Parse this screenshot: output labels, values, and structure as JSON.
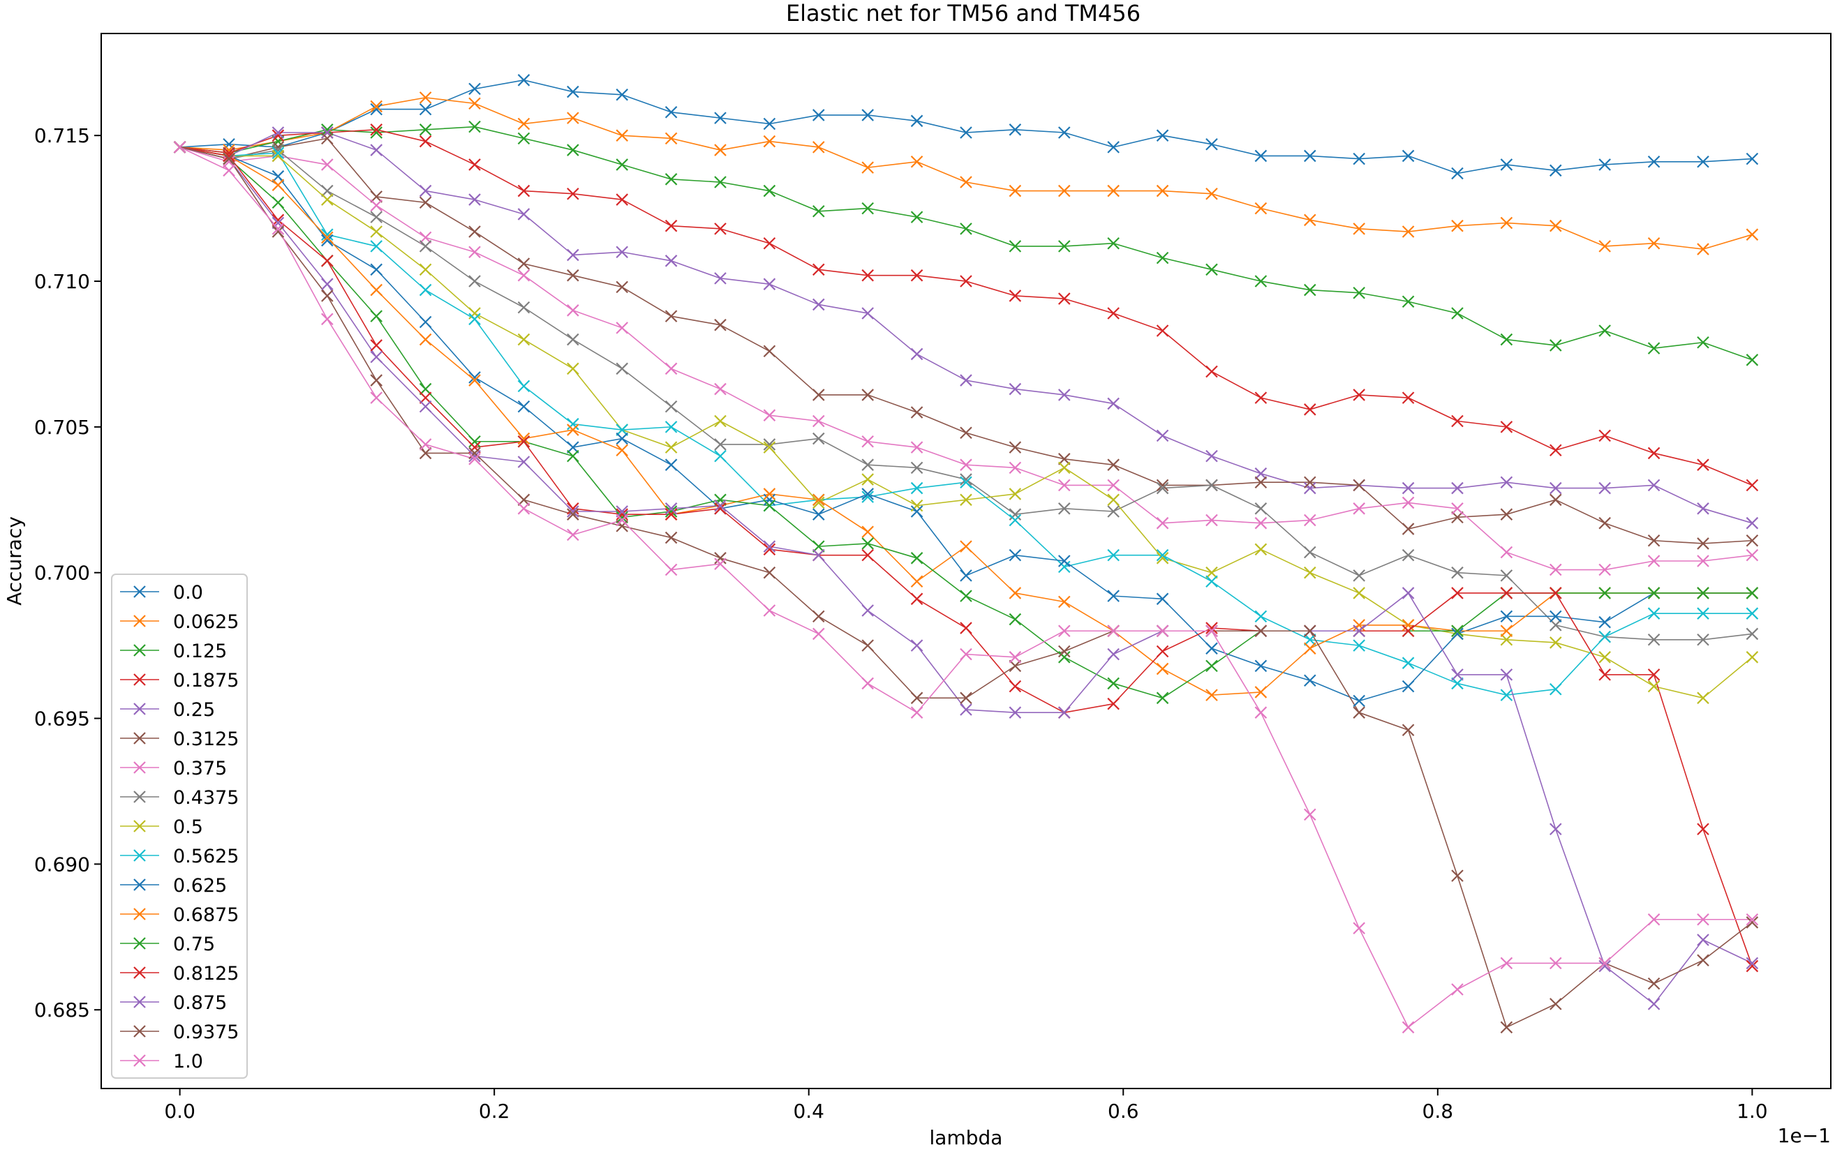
{
  "chart_data": {
    "type": "line",
    "title": "Elastic net for TM56 and TM456",
    "xlabel": "lambda",
    "ylabel": "Accuracy",
    "x_offset_label": "1e−1",
    "xlim": [
      -0.05,
      1.05
    ],
    "ylim": [
      0.6823,
      0.7185
    ],
    "x_ticks": [
      0.0,
      0.2,
      0.4,
      0.6,
      0.8,
      1.0
    ],
    "x_tick_labels": [
      "0.0",
      "0.2",
      "0.4",
      "0.6",
      "0.8",
      "1.0"
    ],
    "y_ticks": [
      0.685,
      0.69,
      0.695,
      0.7,
      0.705,
      0.71,
      0.715
    ],
    "y_tick_labels": [
      "0.685",
      "0.690",
      "0.695",
      "0.700",
      "0.705",
      "0.710",
      "0.715"
    ],
    "grid": false,
    "legend_position": "lower-left",
    "marker": "x",
    "x": [
      0.0,
      0.03125,
      0.0625,
      0.09375,
      0.125,
      0.15625,
      0.1875,
      0.21875,
      0.25,
      0.28125,
      0.3125,
      0.34375,
      0.375,
      0.40625,
      0.4375,
      0.46875,
      0.5,
      0.53125,
      0.5625,
      0.59375,
      0.625,
      0.65625,
      0.6875,
      0.71875,
      0.75,
      0.78125,
      0.8125,
      0.84375,
      0.875,
      0.90625,
      0.9375,
      0.96875,
      1.0
    ],
    "series": [
      {
        "name": "0.0",
        "color": "#1f77b4",
        "values": [
          0.7146,
          0.7147,
          0.7146,
          0.7151,
          0.7159,
          0.7159,
          0.7166,
          0.7169,
          0.7165,
          0.7164,
          0.7158,
          0.7156,
          0.7154,
          0.7157,
          0.7157,
          0.7155,
          0.7151,
          0.7152,
          0.7151,
          0.7146,
          0.715,
          0.7147,
          0.7143,
          0.7143,
          0.7142,
          0.7143,
          0.7137,
          0.714,
          0.7138,
          0.714,
          0.7141,
          0.7141,
          0.7142
        ]
      },
      {
        "name": "0.0625",
        "color": "#ff7f0e",
        "values": [
          0.7146,
          0.7145,
          0.7148,
          0.7151,
          0.716,
          0.7163,
          0.7161,
          0.7154,
          0.7156,
          0.715,
          0.7149,
          0.7145,
          0.7148,
          0.7146,
          0.7139,
          0.7141,
          0.7134,
          0.7131,
          0.7131,
          0.7131,
          0.7131,
          0.713,
          0.7125,
          0.7121,
          0.7118,
          0.7117,
          0.7119,
          0.712,
          0.7119,
          0.7112,
          0.7113,
          0.7111,
          0.7116
        ]
      },
      {
        "name": "0.125",
        "color": "#2ca02c",
        "values": [
          0.7146,
          0.7144,
          0.7148,
          0.7152,
          0.7151,
          0.7152,
          0.7153,
          0.7149,
          0.7145,
          0.714,
          0.7135,
          0.7134,
          0.7131,
          0.7124,
          0.7125,
          0.7122,
          0.7118,
          0.7112,
          0.7112,
          0.7113,
          0.7108,
          0.7104,
          0.71,
          0.7097,
          0.7096,
          0.7093,
          0.7089,
          0.708,
          0.7078,
          0.7083,
          0.7077,
          0.7079,
          0.7073
        ]
      },
      {
        "name": "0.1875",
        "color": "#d62728",
        "values": [
          0.7146,
          0.7144,
          0.715,
          0.7151,
          0.7152,
          0.7148,
          0.714,
          0.7131,
          0.713,
          0.7128,
          0.7119,
          0.7118,
          0.7113,
          0.7104,
          0.7102,
          0.7102,
          0.71,
          0.7095,
          0.7094,
          0.7089,
          0.7083,
          0.7069,
          0.706,
          0.7056,
          0.7061,
          0.706,
          0.7052,
          0.705,
          0.7042,
          0.7047,
          0.7041,
          0.7037,
          0.703
        ]
      },
      {
        "name": "0.25",
        "color": "#9467bd",
        "values": [
          0.7146,
          0.7143,
          0.7151,
          0.7151,
          0.7145,
          0.7131,
          0.7128,
          0.7123,
          0.7109,
          0.711,
          0.7107,
          0.7101,
          0.7099,
          0.7092,
          0.7089,
          0.7075,
          0.7066,
          0.7063,
          0.7061,
          0.7058,
          0.7047,
          0.704,
          0.7034,
          0.7029,
          0.703,
          0.7029,
          0.7029,
          0.7031,
          0.7029,
          0.7029,
          0.703,
          0.7022,
          0.7017
        ]
      },
      {
        "name": "0.3125",
        "color": "#8c564b",
        "values": [
          0.7146,
          0.7142,
          0.7146,
          0.7149,
          0.7129,
          0.7127,
          0.7117,
          0.7106,
          0.7102,
          0.7098,
          0.7088,
          0.7085,
          0.7076,
          0.7061,
          0.7061,
          0.7055,
          0.7048,
          0.7043,
          0.7039,
          0.7037,
          0.703,
          0.703,
          0.7031,
          0.7031,
          0.703,
          0.7015,
          0.7019,
          0.702,
          0.7025,
          0.7017,
          0.7011,
          0.701,
          0.7011
        ]
      },
      {
        "name": "0.375",
        "color": "#e377c2",
        "values": [
          0.7146,
          0.7141,
          0.7143,
          0.714,
          0.7126,
          0.7115,
          0.711,
          0.7102,
          0.709,
          0.7084,
          0.707,
          0.7063,
          0.7054,
          0.7052,
          0.7045,
          0.7043,
          0.7037,
          0.7036,
          0.703,
          0.703,
          0.7017,
          0.7018,
          0.7017,
          0.7018,
          0.7022,
          0.7024,
          0.7022,
          0.7007,
          0.7001,
          0.7001,
          0.7004,
          0.7004,
          0.7006
        ]
      },
      {
        "name": "0.4375",
        "color": "#7f7f7f",
        "values": [
          0.7146,
          0.7142,
          0.7145,
          0.7131,
          0.7122,
          0.7112,
          0.71,
          0.7091,
          0.708,
          0.707,
          0.7057,
          0.7044,
          0.7044,
          0.7046,
          0.7037,
          0.7036,
          0.7032,
          0.702,
          0.7022,
          0.7021,
          0.7029,
          0.703,
          0.7022,
          0.7007,
          0.6999,
          0.7006,
          0.7,
          0.6999,
          0.6982,
          0.6978,
          0.6977,
          0.6977,
          0.6979
        ]
      },
      {
        "name": "0.5",
        "color": "#bcbd22",
        "values": [
          0.7146,
          0.7143,
          0.7143,
          0.7128,
          0.7117,
          0.7104,
          0.7089,
          0.708,
          0.707,
          0.7049,
          0.7043,
          0.7052,
          0.7043,
          0.7024,
          0.7032,
          0.7023,
          0.7025,
          0.7027,
          0.7036,
          0.7025,
          0.7005,
          0.7,
          0.7008,
          0.7,
          0.6993,
          0.6982,
          0.6979,
          0.6977,
          0.6976,
          0.6971,
          0.6961,
          0.6957,
          0.6971
        ]
      },
      {
        "name": "0.5625",
        "color": "#17becf",
        "values": [
          0.7146,
          0.7143,
          0.7144,
          0.7116,
          0.7112,
          0.7097,
          0.7087,
          0.7064,
          0.7051,
          0.7049,
          0.705,
          0.704,
          0.7023,
          0.7025,
          0.7026,
          0.7029,
          0.7031,
          0.7018,
          0.7002,
          0.7006,
          0.7006,
          0.6997,
          0.6985,
          0.6977,
          0.6975,
          0.6969,
          0.6962,
          0.6958,
          0.696,
          0.6978,
          0.6986,
          0.6986,
          0.6986
        ]
      },
      {
        "name": "0.625",
        "color": "#1f77b4",
        "values": [
          0.7146,
          0.7143,
          0.7136,
          0.7114,
          0.7104,
          0.7086,
          0.7067,
          0.7057,
          0.7043,
          0.7046,
          0.7037,
          0.7022,
          0.7025,
          0.702,
          0.7027,
          0.7021,
          0.6999,
          0.7006,
          0.7004,
          0.6992,
          0.6991,
          0.6974,
          0.6968,
          0.6963,
          0.6956,
          0.6961,
          0.6979,
          0.6985,
          0.6985,
          0.6983,
          0.6993,
          0.6993,
          0.6993
        ]
      },
      {
        "name": "0.6875",
        "color": "#ff7f0e",
        "values": [
          0.7146,
          0.7143,
          0.7133,
          0.7115,
          0.7097,
          0.708,
          0.7066,
          0.7046,
          0.7049,
          0.7042,
          0.702,
          0.7023,
          0.7027,
          0.7025,
          0.7014,
          0.6997,
          0.7009,
          0.6993,
          0.699,
          0.698,
          0.6967,
          0.6958,
          0.6959,
          0.6974,
          0.6982,
          0.6982,
          0.698,
          0.698,
          0.6993,
          0.6993,
          0.6993,
          0.6993,
          0.6993
        ]
      },
      {
        "name": "0.75",
        "color": "#2ca02c",
        "values": [
          0.7146,
          0.7142,
          0.7127,
          0.7107,
          0.7088,
          0.7063,
          0.7045,
          0.7045,
          0.704,
          0.7019,
          0.7021,
          0.7025,
          0.7023,
          0.7009,
          0.701,
          0.7005,
          0.6992,
          0.6984,
          0.6971,
          0.6962,
          0.6957,
          0.6968,
          0.698,
          0.698,
          0.698,
          0.698,
          0.698,
          0.6993,
          0.6993,
          0.6993,
          0.6993,
          0.6993,
          0.6993
        ]
      },
      {
        "name": "0.8125",
        "color": "#d62728",
        "values": [
          0.7146,
          0.7143,
          0.7121,
          0.7107,
          0.7078,
          0.706,
          0.7043,
          0.7045,
          0.7022,
          0.702,
          0.702,
          0.7022,
          0.7008,
          0.7006,
          0.7006,
          0.6991,
          0.6981,
          0.6961,
          0.6952,
          0.6955,
          0.6973,
          0.6981,
          0.698,
          0.698,
          0.698,
          0.698,
          0.6993,
          0.6993,
          0.6993,
          0.6965,
          0.6965,
          0.6912,
          0.6865
        ]
      },
      {
        "name": "0.875",
        "color": "#9467bd",
        "values": [
          0.7146,
          0.7142,
          0.712,
          0.7099,
          0.7074,
          0.7057,
          0.704,
          0.7038,
          0.7021,
          0.7021,
          0.7022,
          0.7023,
          0.7009,
          0.7006,
          0.6987,
          0.6975,
          0.6953,
          0.6952,
          0.6952,
          0.6972,
          0.698,
          0.698,
          0.698,
          0.698,
          0.698,
          0.6993,
          0.6965,
          0.6965,
          0.6912,
          0.6865,
          0.6852,
          0.6874,
          0.6866
        ]
      },
      {
        "name": "0.9375",
        "color": "#8c564b",
        "values": [
          0.7146,
          0.7142,
          0.7117,
          0.7095,
          0.7066,
          0.7041,
          0.7041,
          0.7025,
          0.702,
          0.7016,
          0.7012,
          0.7005,
          0.7,
          0.6985,
          0.6975,
          0.6957,
          0.6957,
          0.6968,
          0.6973,
          0.698,
          0.698,
          0.698,
          0.698,
          0.698,
          0.6952,
          0.6946,
          0.6896,
          0.6844,
          0.6852,
          0.6866,
          0.6859,
          0.6867,
          0.688
        ]
      },
      {
        "name": "1.0",
        "color": "#e377c2",
        "values": [
          0.7146,
          0.7138,
          0.7118,
          0.7087,
          0.706,
          0.7044,
          0.7039,
          0.7022,
          0.7013,
          0.7018,
          0.7001,
          0.7003,
          0.6987,
          0.6979,
          0.6962,
          0.6952,
          0.6972,
          0.6971,
          0.698,
          0.698,
          0.698,
          0.698,
          0.6952,
          0.6917,
          0.6878,
          0.6844,
          0.6857,
          0.6866,
          0.6866,
          0.6866,
          0.6881,
          0.6881,
          0.6881
        ]
      }
    ]
  }
}
